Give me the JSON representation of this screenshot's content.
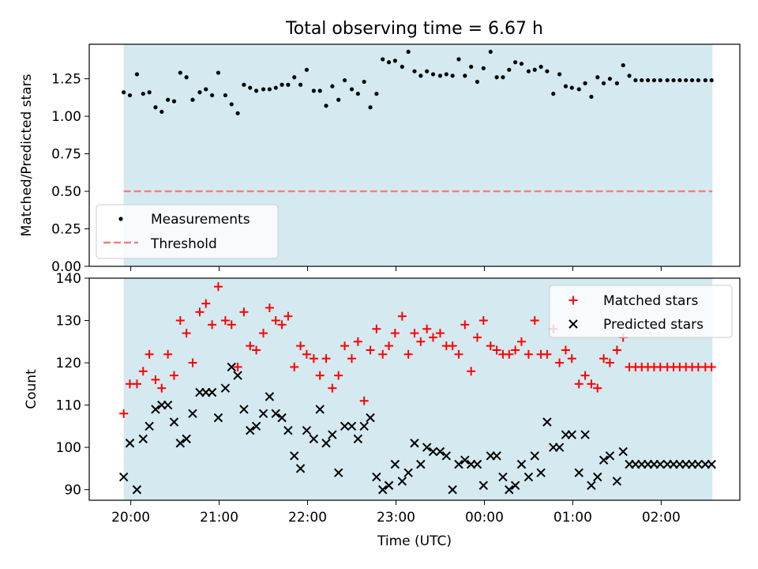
{
  "figure": {
    "title": "Total observing time = 6.67 h",
    "xlabel": "Time (UTC)",
    "x_ticks": [
      "20:00",
      "21:00",
      "22:00",
      "23:00",
      "00:00",
      "01:00",
      "02:00"
    ]
  },
  "colors": {
    "observing_band": "#d4eaf0",
    "measurement_point": "#000000",
    "threshold_line": "#f08080",
    "matched_marker": "#ff0000",
    "predicted_marker": "#000000"
  },
  "chart_data": [
    {
      "type": "scatter",
      "panel": "top",
      "ylabel": "Matched/Predicted stars",
      "ylim": [
        0,
        1.48
      ],
      "y_ticks": [
        "0.00",
        "0.25",
        "0.50",
        "0.75",
        "1.00",
        "1.25"
      ],
      "y_tick_values": [
        0,
        0.25,
        0.5,
        0.75,
        1.0,
        1.25
      ],
      "x_hours": [
        19.92,
        19.99,
        20.07,
        20.14,
        20.21,
        20.28,
        20.35,
        20.42,
        20.49,
        20.56,
        20.63,
        20.7,
        20.78,
        20.85,
        20.92,
        20.99,
        21.07,
        21.14,
        21.21,
        21.28,
        21.35,
        21.42,
        21.5,
        21.57,
        21.64,
        21.71,
        21.78,
        21.85,
        21.92,
        21.99,
        22.07,
        22.14,
        22.21,
        22.28,
        22.35,
        22.42,
        22.5,
        22.57,
        22.64,
        22.71,
        22.78,
        22.85,
        22.92,
        22.99,
        23.07,
        23.14,
        23.21,
        23.28,
        23.35,
        23.42,
        23.5,
        23.57,
        23.64,
        23.71,
        23.78,
        23.85,
        23.92,
        23.99,
        24.07,
        24.14,
        24.21,
        24.28,
        24.35,
        24.42,
        24.5,
        24.57,
        24.64,
        24.71,
        24.78,
        24.85,
        24.92,
        24.99,
        25.07,
        25.14,
        25.21,
        25.28,
        25.35,
        25.42,
        25.5,
        25.57,
        25.64,
        25.71,
        25.78,
        25.85,
        25.92,
        25.99,
        26.07,
        26.14,
        26.21,
        26.28,
        26.35,
        26.42,
        26.5,
        26.57
      ],
      "series": [
        {
          "name": "Measurements",
          "values": [
            1.16,
            1.14,
            1.28,
            1.15,
            1.16,
            1.06,
            1.03,
            1.11,
            1.1,
            1.29,
            1.26,
            1.11,
            1.16,
            1.18,
            1.14,
            1.29,
            1.14,
            1.08,
            1.02,
            1.21,
            1.19,
            1.17,
            1.18,
            1.18,
            1.19,
            1.21,
            1.21,
            1.26,
            1.21,
            1.31,
            1.17,
            1.17,
            1.07,
            1.2,
            1.11,
            1.24,
            1.18,
            1.15,
            1.23,
            1.06,
            1.15,
            1.38,
            1.36,
            1.37,
            1.33,
            1.43,
            1.3,
            1.27,
            1.3,
            1.28,
            1.27,
            1.28,
            1.27,
            1.38,
            1.27,
            1.33,
            1.23,
            1.32,
            1.43,
            1.26,
            1.26,
            1.31,
            1.36,
            1.35,
            1.3,
            1.31,
            1.33,
            1.3,
            1.15,
            1.28,
            1.2,
            1.19,
            1.18,
            1.22,
            1.13,
            1.26,
            1.22,
            1.25,
            1.22,
            1.34,
            1.27,
            1.24,
            1.24,
            1.24,
            1.24,
            1.24,
            1.24,
            1.24,
            1.24,
            1.24,
            1.24,
            1.24,
            1.24,
            1.24
          ]
        },
        {
          "name": "Threshold",
          "constant": 0.5
        }
      ],
      "legend": "lower-left"
    },
    {
      "type": "scatter",
      "panel": "bottom",
      "ylabel": "Count",
      "ylim": [
        87.5,
        140
      ],
      "y_ticks": [
        "90",
        "100",
        "110",
        "120",
        "130",
        "140"
      ],
      "y_tick_values": [
        90,
        100,
        110,
        120,
        130,
        140
      ],
      "x_hours": [
        19.92,
        19.99,
        20.07,
        20.14,
        20.21,
        20.28,
        20.35,
        20.42,
        20.49,
        20.56,
        20.63,
        20.7,
        20.78,
        20.85,
        20.92,
        20.99,
        21.07,
        21.14,
        21.21,
        21.28,
        21.35,
        21.42,
        21.5,
        21.57,
        21.64,
        21.71,
        21.78,
        21.85,
        21.92,
        21.99,
        22.07,
        22.14,
        22.21,
        22.28,
        22.35,
        22.42,
        22.5,
        22.57,
        22.64,
        22.71,
        22.78,
        22.85,
        22.92,
        22.99,
        23.07,
        23.14,
        23.21,
        23.28,
        23.35,
        23.42,
        23.5,
        23.57,
        23.64,
        23.71,
        23.78,
        23.85,
        23.92,
        23.99,
        24.07,
        24.14,
        24.21,
        24.28,
        24.35,
        24.42,
        24.5,
        24.57,
        24.64,
        24.71,
        24.78,
        24.85,
        24.92,
        24.99,
        25.07,
        25.14,
        25.21,
        25.28,
        25.35,
        25.42,
        25.5,
        25.57,
        25.64,
        25.71,
        25.78,
        25.85,
        25.92,
        25.99,
        26.07,
        26.14,
        26.21,
        26.28,
        26.35,
        26.42,
        26.5,
        26.57
      ],
      "series": [
        {
          "name": "Matched stars",
          "values": [
            108,
            115,
            115,
            118,
            122,
            116,
            114,
            122,
            117,
            130,
            127,
            120,
            132,
            134,
            129,
            138,
            130,
            129,
            119,
            132,
            124,
            123,
            127,
            133,
            130,
            129,
            131,
            119,
            124,
            122,
            121,
            117,
            121,
            114,
            117,
            124,
            121,
            125,
            111,
            123,
            128,
            122,
            124,
            127,
            131,
            122,
            127,
            125,
            128,
            126,
            127,
            124,
            124,
            122,
            129,
            118,
            126,
            130,
            124,
            123,
            122,
            122,
            123,
            125,
            122,
            130,
            122,
            122,
            128,
            120,
            123,
            121,
            115,
            117,
            115,
            114,
            121,
            120,
            123,
            126,
            119,
            119,
            119,
            119,
            119,
            119,
            119,
            119,
            119,
            119,
            119,
            119,
            119,
            119
          ]
        },
        {
          "name": "Predicted stars",
          "values": [
            93,
            101,
            90,
            102,
            105,
            109,
            110,
            110,
            106,
            101,
            102,
            108,
            113,
            113,
            113,
            107,
            114,
            119,
            117,
            109,
            104,
            105,
            108,
            112,
            108,
            107,
            104,
            98,
            95,
            104,
            102,
            109,
            101,
            103,
            94,
            105,
            105,
            102,
            105,
            107,
            93,
            90,
            91,
            96,
            92,
            94,
            101,
            96,
            100,
            99,
            99,
            98,
            90,
            96,
            97,
            96,
            96,
            91,
            98,
            98,
            93,
            90,
            91,
            96,
            93,
            98,
            94,
            106,
            100,
            100,
            103,
            103,
            94,
            103,
            91,
            93,
            97,
            98,
            92,
            99,
            96,
            96,
            96,
            96,
            96,
            96,
            96,
            96,
            96,
            96,
            96,
            96,
            96,
            96
          ]
        }
      ],
      "legend": "upper-right"
    }
  ]
}
